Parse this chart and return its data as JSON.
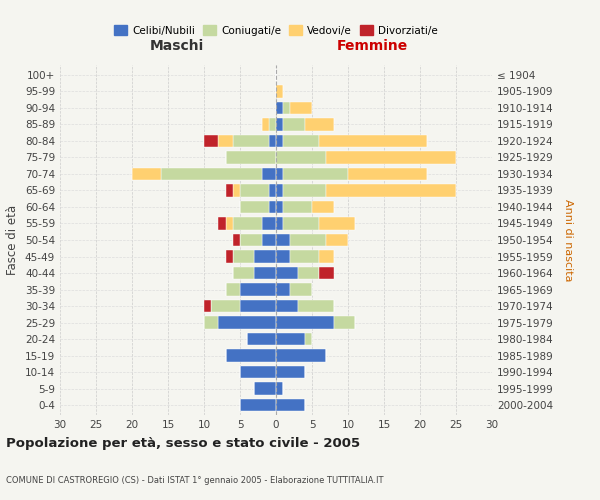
{
  "age_groups": [
    "0-4",
    "5-9",
    "10-14",
    "15-19",
    "20-24",
    "25-29",
    "30-34",
    "35-39",
    "40-44",
    "45-49",
    "50-54",
    "55-59",
    "60-64",
    "65-69",
    "70-74",
    "75-79",
    "80-84",
    "85-89",
    "90-94",
    "95-99",
    "100+"
  ],
  "birth_years": [
    "2000-2004",
    "1995-1999",
    "1990-1994",
    "1985-1989",
    "1980-1984",
    "1975-1979",
    "1970-1974",
    "1965-1969",
    "1960-1964",
    "1955-1959",
    "1950-1954",
    "1945-1949",
    "1940-1944",
    "1935-1939",
    "1930-1934",
    "1925-1929",
    "1920-1924",
    "1915-1919",
    "1910-1914",
    "1905-1909",
    "≤ 1904"
  ],
  "maschi": {
    "celibi": [
      5,
      3,
      5,
      7,
      4,
      8,
      5,
      5,
      3,
      3,
      2,
      2,
      1,
      1,
      2,
      0,
      1,
      0,
      0,
      0,
      0
    ],
    "coniugati": [
      0,
      0,
      0,
      0,
      0,
      2,
      4,
      2,
      3,
      3,
      3,
      4,
      4,
      4,
      14,
      7,
      5,
      1,
      0,
      0,
      0
    ],
    "vedovi": [
      0,
      0,
      0,
      0,
      0,
      0,
      0,
      0,
      0,
      0,
      0,
      1,
      0,
      1,
      4,
      0,
      2,
      1,
      0,
      0,
      0
    ],
    "divorziati": [
      0,
      0,
      0,
      0,
      0,
      0,
      1,
      0,
      0,
      1,
      1,
      1,
      0,
      1,
      0,
      0,
      2,
      0,
      0,
      0,
      0
    ]
  },
  "femmine": {
    "nubili": [
      4,
      1,
      4,
      7,
      4,
      8,
      3,
      2,
      3,
      2,
      2,
      1,
      1,
      1,
      1,
      0,
      1,
      1,
      1,
      0,
      0
    ],
    "coniugate": [
      0,
      0,
      0,
      0,
      1,
      3,
      5,
      3,
      3,
      4,
      5,
      5,
      4,
      6,
      9,
      7,
      5,
      3,
      1,
      0,
      0
    ],
    "vedove": [
      0,
      0,
      0,
      0,
      0,
      0,
      0,
      0,
      0,
      2,
      3,
      5,
      3,
      18,
      11,
      18,
      15,
      4,
      3,
      1,
      0
    ],
    "divorziate": [
      0,
      0,
      0,
      0,
      0,
      0,
      0,
      0,
      2,
      0,
      0,
      0,
      0,
      0,
      0,
      0,
      0,
      0,
      0,
      0,
      0
    ]
  },
  "colors": {
    "celibi_nubili": "#4472C4",
    "coniugati": "#C5D9A0",
    "vedovi": "#FFD070",
    "divorziati": "#C0232A"
  },
  "xlim": 30,
  "title": "Popolazione per età, sesso e stato civile - 2005",
  "subtitle": "COMUNE DI CASTROREGIO (CS) - Dati ISTAT 1° gennaio 2005 - Elaborazione TUTTITALIA.IT",
  "ylabel_left": "Fasce di età",
  "ylabel_right": "Anni di nascita",
  "xlabel_left": "Maschi",
  "xlabel_right": "Femmine",
  "legend_labels": [
    "Celibi/Nubili",
    "Coniugati/e",
    "Vedovi/e",
    "Divorziati/e"
  ],
  "bg_color": "#f5f5f0",
  "bar_height": 0.75
}
